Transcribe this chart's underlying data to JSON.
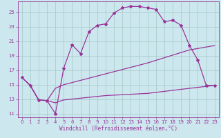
{
  "bg_color": "#cce8ee",
  "grid_color": "#aacccc",
  "line_color": "#993399",
  "xlim": [
    -0.5,
    23.5
  ],
  "ylim": [
    10.5,
    26.5
  ],
  "xticks": [
    0,
    1,
    2,
    3,
    4,
    5,
    6,
    7,
    8,
    9,
    10,
    11,
    12,
    13,
    14,
    15,
    16,
    17,
    18,
    19,
    20,
    21,
    22,
    23
  ],
  "yticks": [
    11,
    13,
    15,
    17,
    19,
    21,
    23,
    25
  ],
  "xlabel": "Windchill (Refroidissement éolien,°C)",
  "line1_x": [
    0,
    1,
    2,
    3,
    4,
    5,
    6,
    7,
    8,
    9,
    10,
    11,
    12,
    13,
    14,
    15,
    16,
    17,
    18,
    19,
    20,
    21,
    22,
    23
  ],
  "line1_y": [
    16.0,
    14.9,
    12.9,
    12.8,
    11.0,
    17.3,
    20.5,
    19.3,
    22.3,
    23.2,
    23.4,
    24.9,
    25.6,
    25.8,
    25.8,
    25.6,
    25.4,
    23.7,
    23.9,
    23.2,
    20.4,
    18.4,
    14.9,
    14.9
  ],
  "line2_x": [
    0,
    1,
    2,
    3,
    4,
    5,
    10,
    15,
    20,
    23
  ],
  "line2_y": [
    16.0,
    14.9,
    12.9,
    12.8,
    14.5,
    15.0,
    16.5,
    18.0,
    19.8,
    20.4
  ],
  "line3_x": [
    0,
    1,
    2,
    3,
    4,
    5,
    10,
    15,
    20,
    23
  ],
  "line3_y": [
    16.0,
    14.9,
    12.9,
    12.8,
    12.5,
    12.9,
    13.5,
    13.8,
    14.5,
    14.9
  ]
}
